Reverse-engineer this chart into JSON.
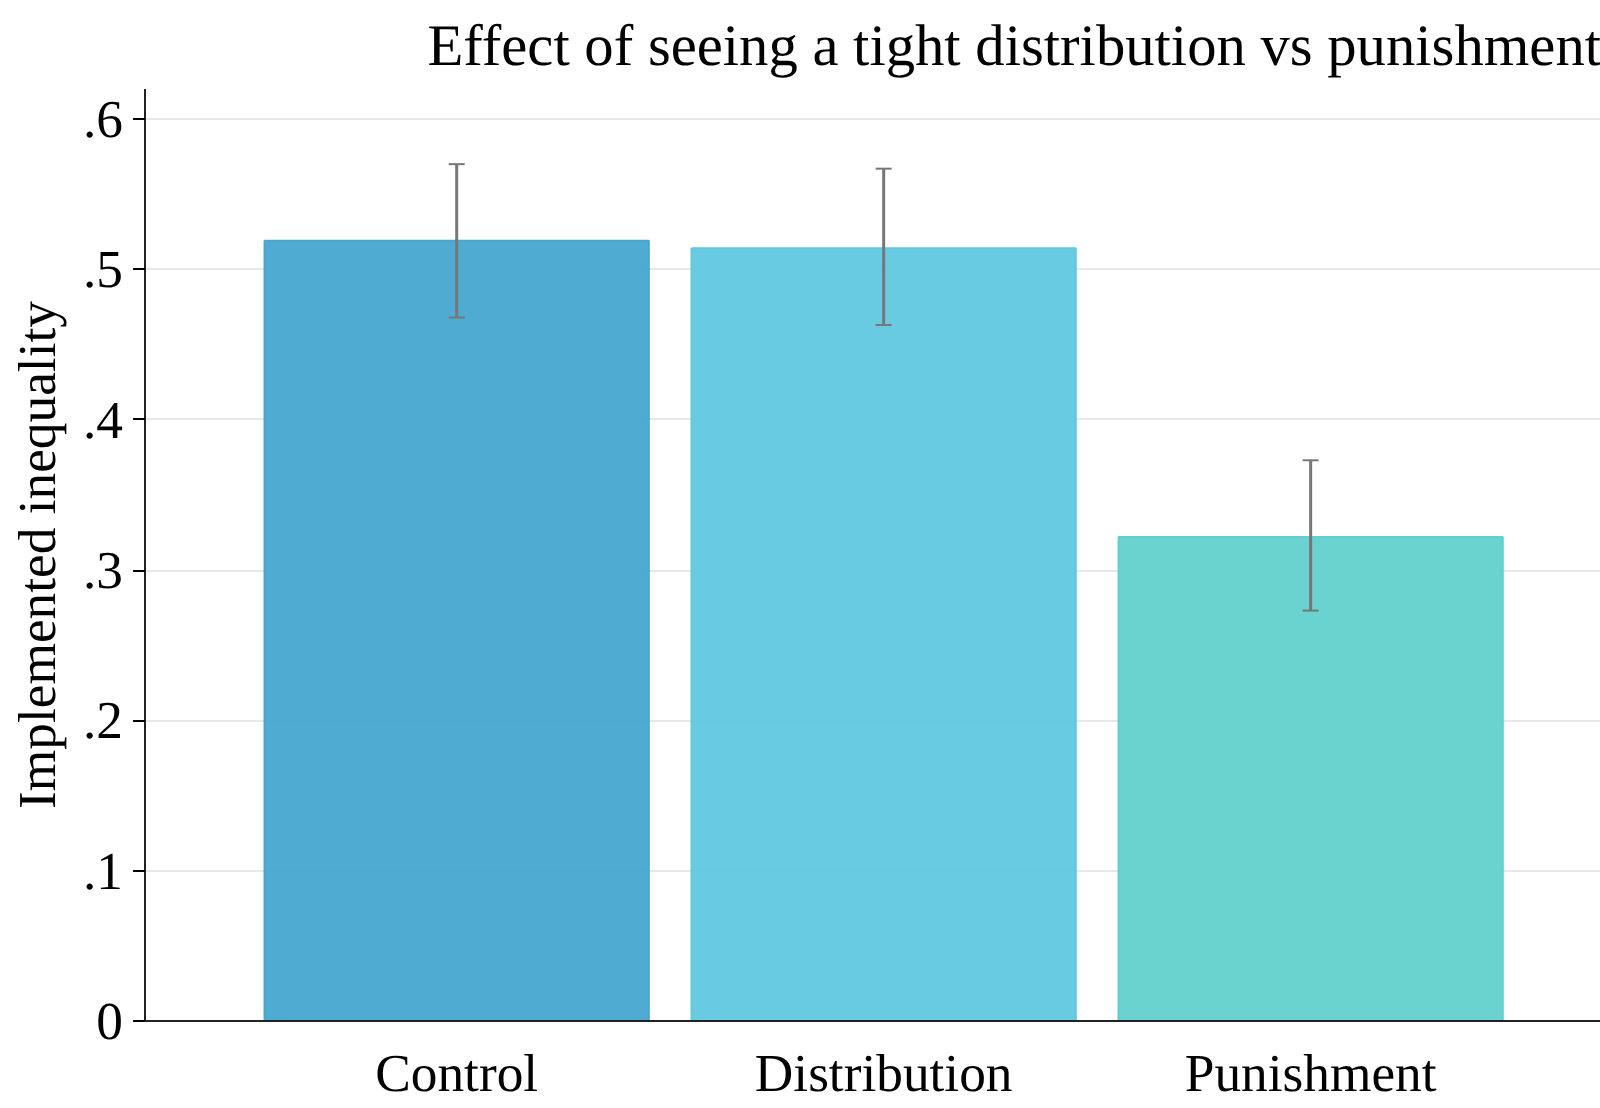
{
  "chart_data": {
    "type": "bar",
    "title": "Effect of seeing a tight distribution vs punishment",
    "ylabel": "Implemented inequality",
    "categories": [
      "Control",
      "Distribution",
      "Punishment"
    ],
    "values": [
      0.519,
      0.514,
      0.322
    ],
    "colors": [
      "#47a7d0",
      "#60c8e0",
      "#62d0cc"
    ],
    "errors": [
      [
        0.468,
        0.57
      ],
      [
        0.463,
        0.567
      ],
      [
        0.273,
        0.373
      ]
    ],
    "ylim": [
      0,
      0.62
    ],
    "yticks": [
      0,
      {
        "value": 0.1,
        "label": ".1"
      },
      {
        "value": 0.2,
        "label": ".2"
      },
      {
        "value": 0.3,
        "label": ".3"
      },
      {
        "value": 0.4,
        "label": ".4"
      },
      {
        "value": 0.5,
        "label": ".5"
      },
      {
        "value": 0.6,
        "label": ".6"
      }
    ],
    "grid": "y"
  }
}
